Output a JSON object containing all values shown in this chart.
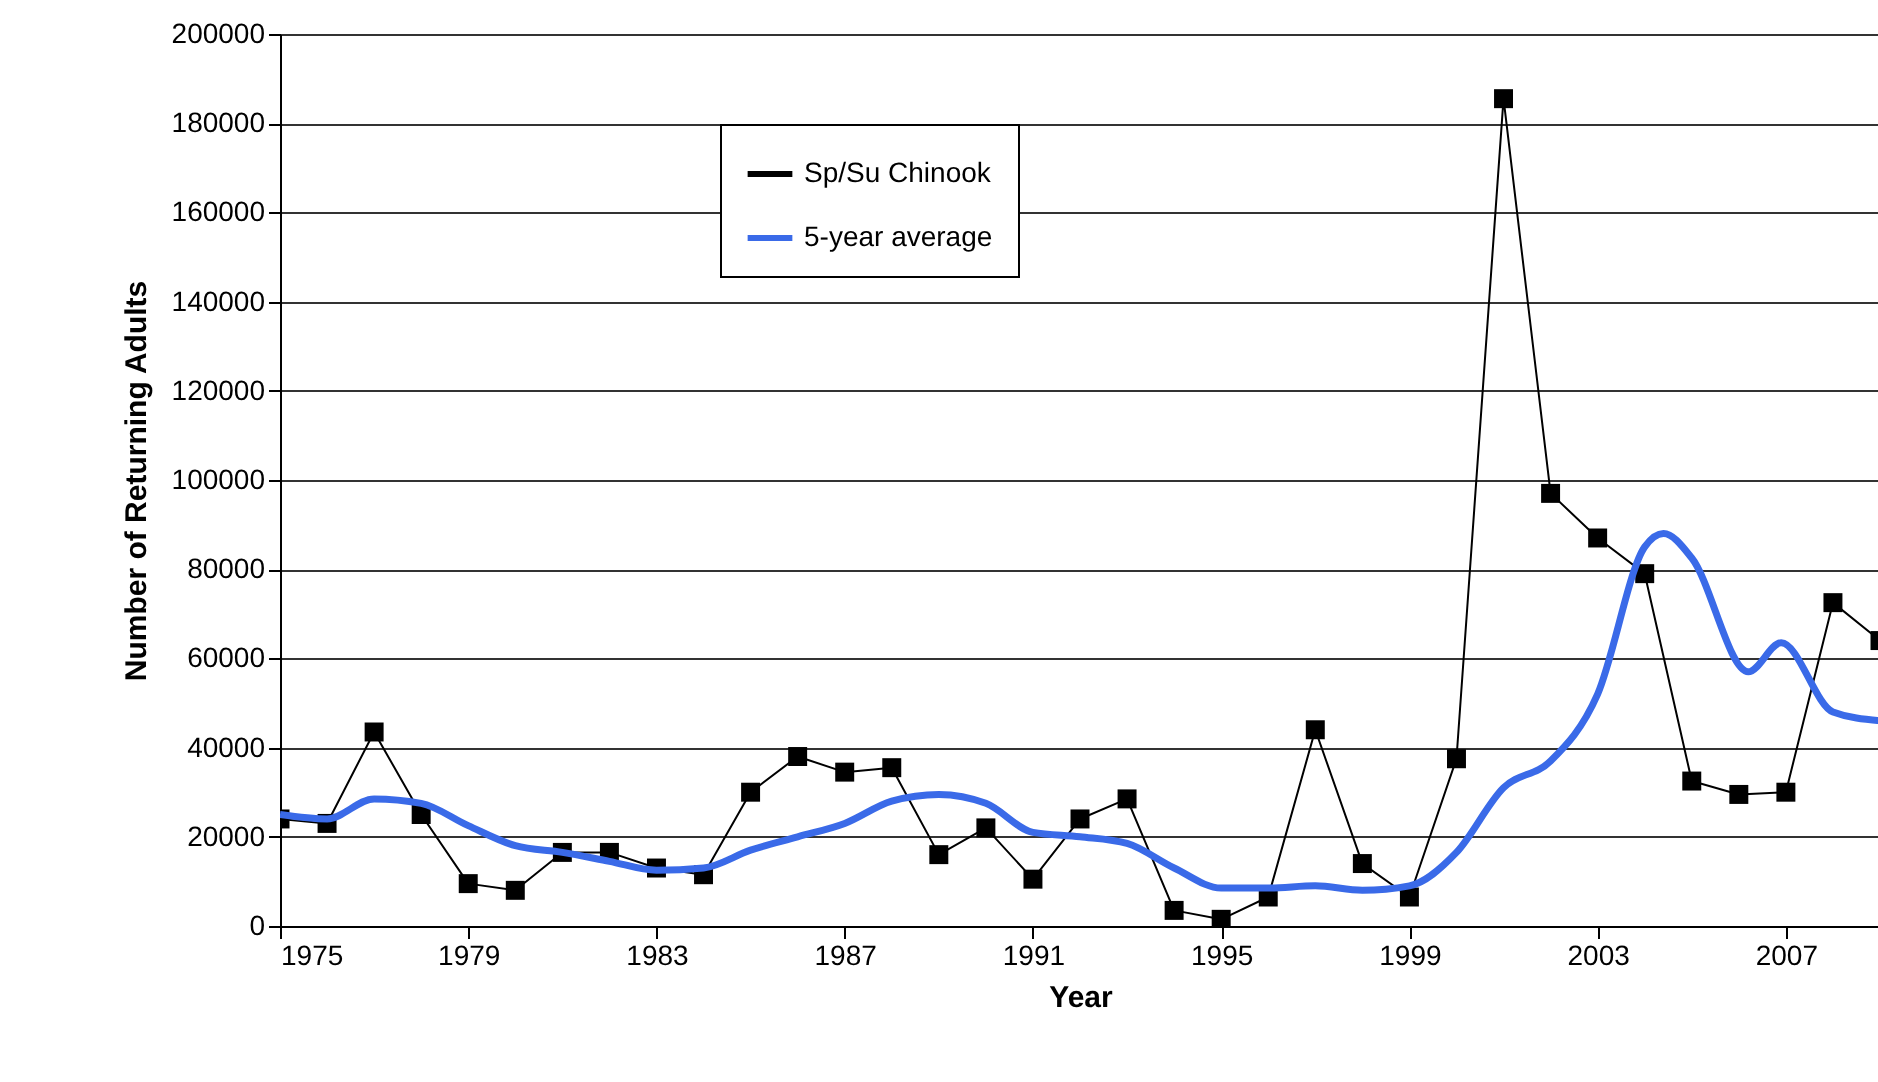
{
  "chart_data": {
    "type": "line",
    "xlabel": "Year",
    "ylabel": "Number of Returning Adults",
    "xlim": [
      1975,
      2009
    ],
    "xticks": [
      1975,
      1979,
      1983,
      1987,
      1991,
      1995,
      1999,
      2003,
      2007
    ],
    "ylim": [
      0,
      200000
    ],
    "yticks": [
      0,
      20000,
      40000,
      60000,
      80000,
      100000,
      120000,
      140000,
      160000,
      180000,
      200000
    ],
    "grid": "y",
    "legend": "top",
    "series": [
      {
        "name": "Sp/Su Chinook",
        "color": "#000000",
        "marker": "square",
        "x": [
          1975,
          1976,
          1977,
          1978,
          1979,
          1980,
          1981,
          1982,
          1983,
          1984,
          1985,
          1986,
          1987,
          1988,
          1989,
          1990,
          1991,
          1992,
          1993,
          1994,
          1995,
          1996,
          1997,
          1998,
          1999,
          2000,
          2001,
          2002,
          2003,
          2004,
          2005,
          2006,
          2007,
          2008,
          2009
        ],
        "values": [
          24000,
          23000,
          43500,
          25000,
          9500,
          8000,
          16500,
          16500,
          13000,
          11500,
          30000,
          38000,
          34500,
          35500,
          16000,
          22000,
          10500,
          24000,
          28500,
          3500,
          1500,
          6500,
          44000,
          14000,
          6500,
          37500,
          185500,
          97000,
          87000,
          79000,
          32500,
          29500,
          30000,
          72500,
          64000
        ]
      },
      {
        "name": "5-year average",
        "color": "#3a6ae8",
        "marker": "none",
        "x": [
          1975,
          1976,
          1977,
          1978,
          1979,
          1980,
          1981,
          1982,
          1983,
          1984,
          1985,
          1986,
          1987,
          1988,
          1989,
          1990,
          1991,
          1992,
          1993,
          1994,
          1995,
          1996,
          1997,
          1998,
          1999,
          2000,
          2001,
          2002,
          2003,
          2004,
          2004.4,
          2005,
          2006.2,
          2006.9,
          2008,
          2009
        ],
        "values": [
          25000,
          24000,
          28500,
          27500,
          22500,
          18000,
          16500,
          14500,
          12500,
          13000,
          17000,
          20000,
          23000,
          28000,
          29500,
          27500,
          21000,
          20000,
          18500,
          13000,
          8500,
          8500,
          9000,
          8000,
          9000,
          16500,
          31000,
          37000,
          52000,
          85000,
          88000,
          82500,
          57000,
          63500,
          48000,
          46000
        ]
      }
    ]
  }
}
